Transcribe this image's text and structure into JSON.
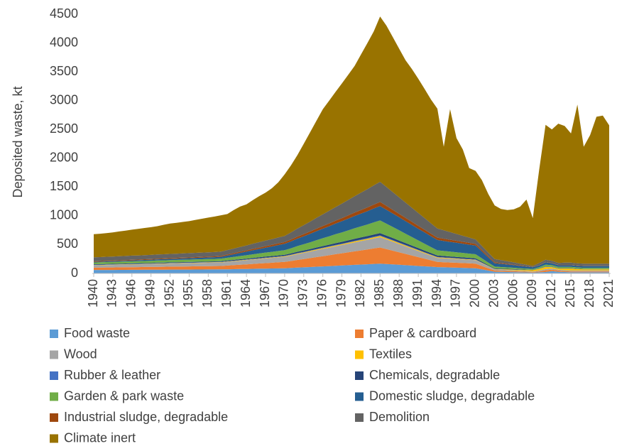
{
  "chart_data": {
    "type": "stacked-area",
    "y_label": "Deposited waste, kt",
    "x": [
      1940,
      1941,
      1942,
      1943,
      1944,
      1945,
      1946,
      1947,
      1948,
      1949,
      1950,
      1951,
      1952,
      1953,
      1954,
      1955,
      1956,
      1957,
      1958,
      1959,
      1960,
      1961,
      1962,
      1963,
      1964,
      1965,
      1966,
      1967,
      1968,
      1969,
      1970,
      1971,
      1972,
      1973,
      1974,
      1975,
      1976,
      1977,
      1978,
      1979,
      1980,
      1981,
      1982,
      1983,
      1984,
      1985,
      1986,
      1987,
      1988,
      1989,
      1990,
      1991,
      1992,
      1993,
      1994,
      1995,
      1996,
      1997,
      1998,
      1999,
      2000,
      2001,
      2002,
      2003,
      2004,
      2005,
      2006,
      2007,
      2008,
      2009,
      2010,
      2011,
      2012,
      2013,
      2014,
      2015,
      2016,
      2017,
      2018,
      2019,
      2020,
      2021
    ],
    "xlim": [
      1940,
      2021
    ],
    "xticks": [
      1940,
      1943,
      1946,
      1949,
      1952,
      1955,
      1958,
      1961,
      1964,
      1967,
      1970,
      1973,
      1976,
      1979,
      1982,
      1985,
      1988,
      1991,
      1994,
      1997,
      2000,
      2003,
      2006,
      2009,
      2012,
      2015,
      2018,
      2021
    ],
    "ylim": [
      0,
      4500
    ],
    "yticks": [
      0,
      500,
      1000,
      1500,
      2000,
      2500,
      3000,
      3500,
      4000,
      4500
    ],
    "legend": "bottom",
    "series": [
      {
        "name": "Food waste",
        "color": "#5b9bd5",
        "values": [
          60,
          60,
          61,
          61,
          62,
          62,
          63,
          63,
          64,
          64,
          65,
          65,
          66,
          66,
          67,
          67,
          68,
          68,
          69,
          69,
          70,
          72,
          74,
          76,
          78,
          80,
          82,
          84,
          86,
          88,
          90,
          95,
          101,
          106,
          111,
          117,
          122,
          127,
          133,
          138,
          143,
          149,
          154,
          159,
          165,
          170,
          163,
          157,
          150,
          143,
          137,
          130,
          123,
          117,
          110,
          107,
          103,
          100,
          97,
          93,
          90,
          70,
          50,
          30,
          28,
          25,
          23,
          20,
          18,
          15,
          20,
          25,
          40,
          30,
          25,
          20,
          20,
          20,
          20,
          20,
          20,
          20
        ]
      },
      {
        "name": "Paper & cardboard",
        "color": "#ed7d31",
        "values": [
          40,
          41,
          42,
          43,
          44,
          45,
          46,
          47,
          48,
          49,
          50,
          51,
          52,
          53,
          54,
          55,
          56,
          57,
          58,
          59,
          60,
          65,
          70,
          75,
          80,
          85,
          90,
          95,
          100,
          105,
          110,
          121,
          133,
          144,
          155,
          167,
          178,
          189,
          201,
          212,
          223,
          235,
          246,
          257,
          269,
          280,
          259,
          238,
          217,
          196,
          174,
          153,
          132,
          111,
          90,
          88,
          87,
          85,
          83,
          82,
          80,
          60,
          40,
          20,
          18,
          17,
          15,
          13,
          12,
          10,
          15,
          30,
          25,
          20,
          15,
          15,
          15,
          15,
          15,
          15,
          15,
          15
        ]
      },
      {
        "name": "Wood",
        "color": "#a5a5a5",
        "values": [
          40,
          41,
          42,
          43,
          44,
          45,
          46,
          47,
          48,
          49,
          50,
          51,
          52,
          53,
          54,
          55,
          56,
          57,
          58,
          59,
          60,
          63,
          66,
          69,
          72,
          75,
          78,
          81,
          84,
          87,
          90,
          96,
          102,
          108,
          114,
          120,
          126,
          132,
          138,
          144,
          150,
          156,
          162,
          168,
          174,
          180,
          168,
          156,
          143,
          131,
          119,
          107,
          94,
          82,
          70,
          68,
          67,
          65,
          63,
          62,
          60,
          47,
          33,
          20,
          18,
          17,
          15,
          13,
          12,
          10,
          15,
          20,
          20,
          15,
          15,
          15,
          15,
          15,
          15,
          15,
          15,
          15
        ]
      },
      {
        "name": "Textiles",
        "color": "#ffc000",
        "values": [
          5,
          5,
          5,
          5,
          5,
          5,
          5,
          5,
          5,
          5,
          6,
          6,
          6,
          6,
          6,
          6,
          6,
          6,
          6,
          6,
          6,
          6,
          6,
          7,
          7,
          7,
          7,
          8,
          8,
          8,
          8,
          9,
          10,
          10,
          11,
          12,
          13,
          14,
          14,
          15,
          16,
          17,
          18,
          18,
          19,
          20,
          19,
          18,
          17,
          16,
          14,
          13,
          12,
          11,
          10,
          10,
          9,
          9,
          9,
          8,
          8,
          7,
          6,
          5,
          7,
          10,
          12,
          15,
          17,
          20,
          30,
          40,
          25,
          20,
          30,
          35,
          25,
          20,
          20,
          20,
          20,
          20
        ]
      },
      {
        "name": "Rubber & leather",
        "color": "#4472c4",
        "values": [
          5,
          5,
          5,
          5,
          5,
          5,
          5,
          5,
          5,
          5,
          5,
          5,
          5,
          5,
          5,
          5,
          5,
          5,
          5,
          5,
          5,
          5,
          5,
          5,
          5,
          6,
          6,
          6,
          6,
          6,
          6,
          6,
          7,
          7,
          7,
          7,
          8,
          8,
          8,
          8,
          9,
          9,
          9,
          9,
          10,
          10,
          10,
          9,
          9,
          8,
          8,
          7,
          7,
          6,
          6,
          6,
          6,
          6,
          5,
          5,
          5,
          4,
          4,
          3,
          3,
          3,
          3,
          2,
          2,
          2,
          3,
          3,
          3,
          3,
          3,
          3,
          3,
          3,
          3,
          3,
          3,
          3
        ]
      },
      {
        "name": "Chemicals, degradable",
        "color": "#264478",
        "values": [
          10,
          10,
          10,
          10,
          10,
          10,
          10,
          10,
          10,
          10,
          11,
          11,
          11,
          11,
          11,
          11,
          11,
          11,
          11,
          11,
          12,
          13,
          14,
          14,
          15,
          16,
          17,
          18,
          18,
          19,
          20,
          21,
          23,
          24,
          25,
          27,
          28,
          29,
          31,
          32,
          33,
          35,
          36,
          37,
          39,
          40,
          38,
          37,
          35,
          33,
          32,
          30,
          28,
          27,
          25,
          24,
          23,
          22,
          22,
          21,
          20,
          17,
          13,
          10,
          9,
          8,
          8,
          7,
          6,
          5,
          5,
          5,
          5,
          5,
          5,
          5,
          5,
          5,
          5,
          5,
          5,
          5
        ]
      },
      {
        "name": "Garden & park waste",
        "color": "#70ad47",
        "values": [
          30,
          31,
          32,
          32,
          33,
          34,
          35,
          35,
          36,
          37,
          38,
          38,
          39,
          40,
          41,
          41,
          42,
          43,
          44,
          44,
          45,
          49,
          52,
          56,
          59,
          63,
          66,
          70,
          73,
          77,
          80,
          89,
          99,
          108,
          117,
          127,
          136,
          145,
          155,
          164,
          173,
          183,
          192,
          201,
          211,
          220,
          206,
          191,
          177,
          162,
          148,
          133,
          119,
          104,
          90,
          87,
          83,
          80,
          77,
          73,
          70,
          57,
          43,
          30,
          28,
          25,
          23,
          20,
          18,
          15,
          20,
          30,
          25,
          20,
          20,
          20,
          20,
          20,
          20,
          20,
          20,
          20
        ]
      },
      {
        "name": "Domestic sludge, degradable",
        "color": "#255e91",
        "values": [
          10,
          11,
          12,
          13,
          14,
          15,
          16,
          17,
          18,
          19,
          20,
          21,
          22,
          23,
          24,
          25,
          26,
          27,
          28,
          29,
          30,
          38,
          46,
          54,
          62,
          70,
          78,
          86,
          94,
          102,
          110,
          119,
          129,
          138,
          147,
          157,
          166,
          175,
          185,
          194,
          203,
          213,
          222,
          231,
          241,
          250,
          242,
          234,
          227,
          219,
          211,
          203,
          196,
          188,
          180,
          175,
          170,
          165,
          160,
          155,
          150,
          120,
          90,
          60,
          55,
          50,
          45,
          40,
          35,
          30,
          30,
          40,
          35,
          30,
          30,
          30,
          30,
          30,
          30,
          30,
          30,
          30
        ]
      },
      {
        "name": "Industrial sludge, degradable",
        "color": "#9e480e",
        "values": [
          10,
          10,
          10,
          10,
          11,
          11,
          11,
          11,
          12,
          12,
          12,
          12,
          13,
          13,
          13,
          13,
          14,
          14,
          14,
          14,
          15,
          17,
          18,
          20,
          21,
          23,
          24,
          26,
          27,
          29,
          30,
          33,
          35,
          38,
          41,
          43,
          46,
          49,
          51,
          54,
          57,
          59,
          62,
          65,
          67,
          70,
          67,
          63,
          60,
          57,
          53,
          50,
          47,
          43,
          40,
          38,
          37,
          35,
          33,
          32,
          30,
          25,
          20,
          15,
          13,
          12,
          10,
          8,
          7,
          5,
          5,
          5,
          5,
          5,
          5,
          5,
          5,
          5,
          5,
          5,
          5,
          5
        ]
      },
      {
        "name": "Demolition",
        "color": "#636363",
        "values": [
          70,
          70,
          71,
          71,
          71,
          71,
          72,
          72,
          72,
          72,
          72,
          73,
          73,
          73,
          73,
          74,
          74,
          74,
          74,
          75,
          75,
          78,
          81,
          84,
          87,
          91,
          94,
          97,
          100,
          103,
          106,
          122,
          139,
          155,
          171,
          187,
          204,
          220,
          236,
          252,
          269,
          285,
          301,
          317,
          334,
          350,
          329,
          308,
          286,
          265,
          244,
          223,
          202,
          180,
          159,
          145,
          132,
          118,
          104,
          91,
          77,
          70,
          64,
          57,
          51,
          44,
          38,
          31,
          25,
          18,
          37,
          40,
          35,
          35,
          40,
          40,
          37,
          37,
          37,
          37,
          37,
          37
        ]
      },
      {
        "name": "Climate inert",
        "color": "#997300",
        "values": [
          400,
          405,
          410,
          420,
          430,
          440,
          451,
          461,
          471,
          481,
          491,
          511,
          526,
          536,
          546,
          556,
          572,
          587,
          602,
          617,
          632,
          625,
          668,
          700,
          713,
          756,
          799,
          832,
          884,
          957,
          1070,
          1167,
          1275,
          1412,
          1549,
          1687,
          1824,
          1911,
          1999,
          2086,
          2173,
          2261,
          2398,
          2535,
          2673,
          2870,
          2800,
          2690,
          2580,
          2470,
          2410,
          2330,
          2240,
          2150,
          2080,
          1452,
          2133,
          1665,
          1497,
          1208,
          1190,
          1143,
          1017,
          930,
          890,
          890,
          920,
          990,
          1130,
          830,
          1620,
          2342,
          2282,
          2417,
          2372,
          2242,
          2755,
          2030,
          2230,
          2550,
          2570,
          2400
        ]
      }
    ]
  }
}
